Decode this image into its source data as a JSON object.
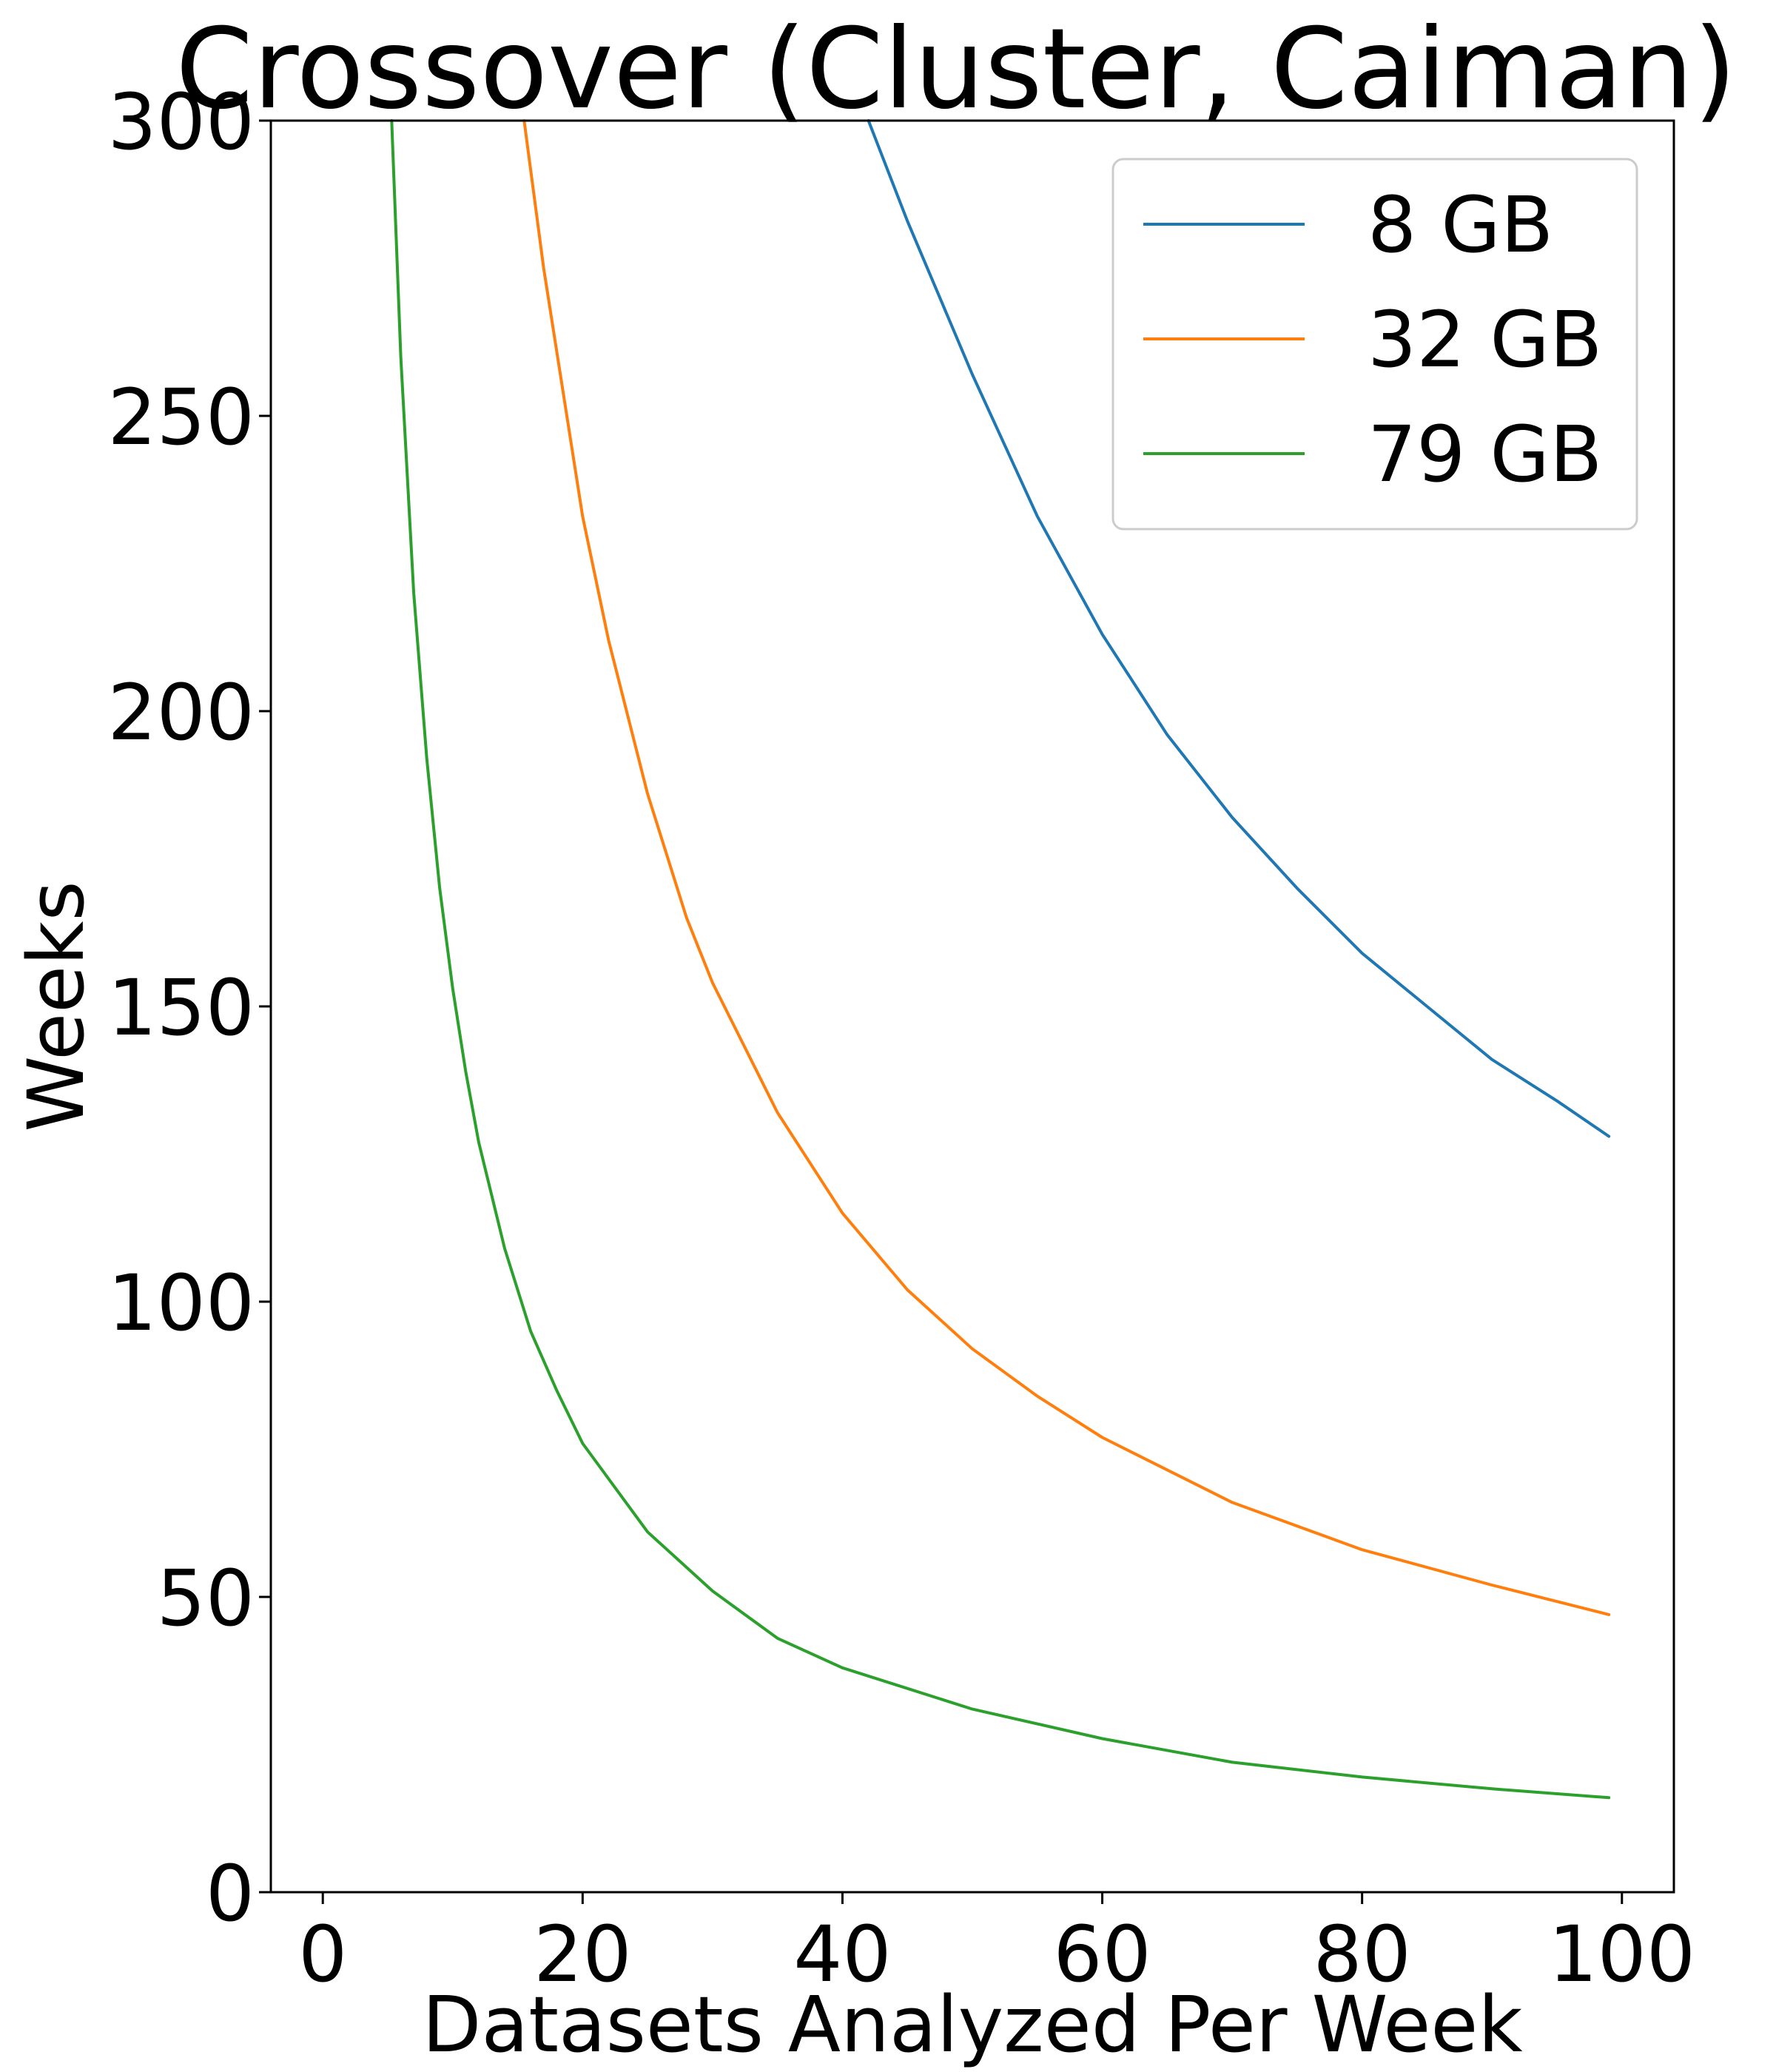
{
  "chart_data": {
    "type": "line",
    "title": "Crossover (Cluster, Caiman)",
    "xlabel": "Datasets Analyzed Per Week",
    "ylabel": "Weeks",
    "xlim": [
      -4,
      104
    ],
    "ylim": [
      0,
      300
    ],
    "xticks": [
      0,
      20,
      40,
      60,
      80,
      100
    ],
    "yticks": [
      0,
      50,
      100,
      150,
      200,
      250,
      300
    ],
    "grid": false,
    "legend_position": "top-right",
    "series": [
      {
        "name": "8 GB",
        "color": "#1f77b4",
        "x": [
          42,
          45,
          50,
          55,
          60,
          65,
          70,
          75,
          80,
          85,
          90,
          95,
          99
        ],
        "y": [
          300,
          283,
          257,
          233,
          213,
          196,
          182,
          170,
          159,
          150,
          141,
          134,
          128
        ]
      },
      {
        "name": "32 GB",
        "color": "#ff7f0e",
        "x": [
          15.5,
          17,
          20,
          22,
          25,
          28,
          30,
          35,
          40,
          45,
          50,
          55,
          60,
          70,
          80,
          90,
          99
        ],
        "y": [
          300,
          275,
          233,
          212,
          186,
          165,
          154,
          132,
          115,
          102,
          92,
          84,
          77,
          66,
          58,
          52,
          47
        ]
      },
      {
        "name": "79 GB",
        "color": "#2ca02c",
        "x": [
          5.3,
          6,
          7,
          8,
          9,
          10,
          11,
          12,
          14,
          16,
          18,
          20,
          25,
          30,
          35,
          40,
          50,
          60,
          70,
          80,
          90,
          99
        ],
        "y": [
          300,
          260,
          220,
          192,
          170,
          153,
          139,
          127,
          109,
          95,
          85,
          76,
          61,
          51,
          43,
          38,
          31,
          26,
          22,
          19.5,
          17.5,
          16
        ]
      }
    ]
  }
}
